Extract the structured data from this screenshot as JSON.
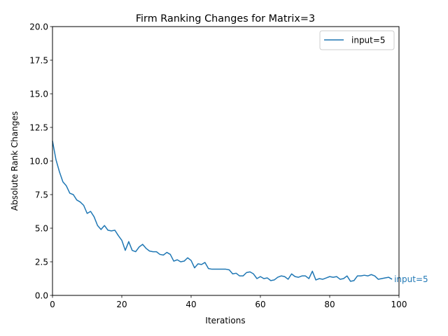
{
  "chart_data": {
    "type": "line",
    "title": "Firm Ranking Changes for Matrix=3",
    "xlabel": "Iterations",
    "ylabel": "Absolute Rank Changes",
    "xlim": [
      0,
      100
    ],
    "ylim": [
      0,
      20
    ],
    "xticks": [
      0,
      20,
      40,
      60,
      80,
      100
    ],
    "yticks": [
      0.0,
      2.5,
      5.0,
      7.5,
      10.0,
      12.5,
      15.0,
      17.5,
      20.0
    ],
    "xtick_labels": [
      "0",
      "20",
      "40",
      "60",
      "80",
      "100"
    ],
    "ytick_labels": [
      "0.0",
      "2.5",
      "5.0",
      "7.5",
      "10.0",
      "12.5",
      "15.0",
      "17.5",
      "20.0"
    ],
    "grid": false,
    "legend": {
      "position": "top-right",
      "entries": [
        "input=5"
      ]
    },
    "series": [
      {
        "name": "input=5",
        "color": "#1f77b4",
        "end_label": "input=5",
        "x": [
          0,
          1,
          2,
          3,
          4,
          5,
          6,
          7,
          8,
          9,
          10,
          11,
          12,
          13,
          14,
          15,
          16,
          17,
          18,
          19,
          20,
          21,
          22,
          23,
          24,
          25,
          26,
          27,
          28,
          29,
          30,
          31,
          32,
          33,
          34,
          35,
          36,
          37,
          38,
          39,
          40,
          41,
          42,
          43,
          44,
          45,
          46,
          47,
          48,
          49,
          50,
          51,
          52,
          53,
          54,
          55,
          56,
          57,
          58,
          59,
          60,
          61,
          62,
          63,
          64,
          65,
          66,
          67,
          68,
          69,
          70,
          71,
          72,
          73,
          74,
          75,
          76,
          77,
          78,
          79,
          80,
          81,
          82,
          83,
          84,
          85,
          86,
          87,
          88,
          89,
          90,
          91,
          92,
          93,
          94,
          95,
          96,
          97,
          98
        ],
        "values": [
          11.5,
          10.1,
          9.2,
          8.45,
          8.15,
          7.6,
          7.5,
          7.1,
          6.95,
          6.7,
          6.1,
          6.25,
          5.85,
          5.2,
          4.9,
          5.2,
          4.85,
          4.8,
          4.85,
          4.45,
          4.1,
          3.35,
          4.0,
          3.35,
          3.25,
          3.6,
          3.8,
          3.5,
          3.3,
          3.25,
          3.25,
          3.05,
          3.0,
          3.2,
          3.05,
          2.55,
          2.65,
          2.5,
          2.55,
          2.8,
          2.6,
          2.05,
          2.35,
          2.3,
          2.45,
          2.0,
          1.95,
          1.95,
          1.95,
          1.95,
          1.95,
          1.9,
          1.6,
          1.65,
          1.45,
          1.45,
          1.7,
          1.75,
          1.6,
          1.25,
          1.4,
          1.25,
          1.3,
          1.1,
          1.15,
          1.35,
          1.45,
          1.4,
          1.2,
          1.6,
          1.4,
          1.35,
          1.45,
          1.45,
          1.25,
          1.8,
          1.15,
          1.25,
          1.2,
          1.3,
          1.4,
          1.35,
          1.4,
          1.2,
          1.25,
          1.45,
          1.05,
          1.1,
          1.45,
          1.45,
          1.5,
          1.45,
          1.55,
          1.45,
          1.2,
          1.25,
          1.3,
          1.35,
          1.2
        ]
      }
    ]
  }
}
